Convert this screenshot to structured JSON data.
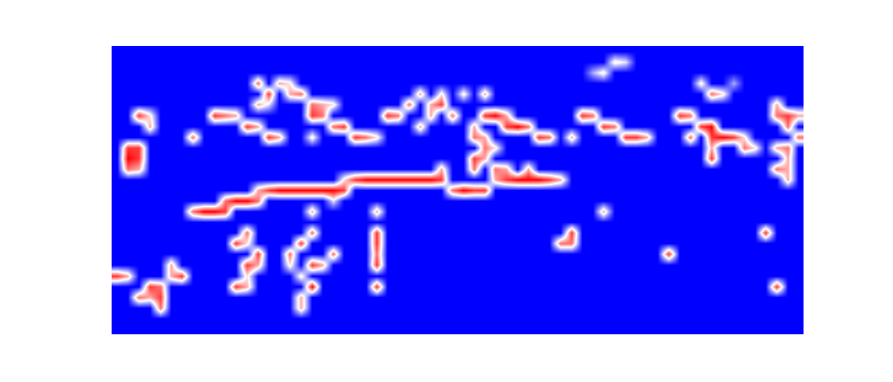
{
  "chart_data": {
    "type": "heatmap",
    "tick_labels": false,
    "zlim": [
      0,
      9
    ],
    "z": [
      [
        0,
        0,
        0,
        0,
        0,
        0,
        0,
        0,
        0,
        0,
        0,
        0,
        0,
        0,
        0,
        0,
        0,
        0,
        0,
        0,
        0,
        0,
        0,
        0,
        0,
        0,
        0,
        0,
        0,
        0,
        0,
        0,
        0,
        0,
        0,
        0,
        0,
        0,
        0,
        0,
        0,
        0,
        0,
        0,
        0,
        0,
        0,
        0,
        0,
        0,
        0,
        0,
        0,
        0,
        0,
        0,
        0,
        0,
        0,
        0,
        0,
        0,
        0,
        0
      ],
      [
        0,
        0,
        0,
        0,
        0,
        0,
        0,
        0,
        0,
        0,
        0,
        0,
        0,
        0,
        0,
        0,
        0,
        0,
        0,
        0,
        0,
        0,
        0,
        0,
        0,
        0,
        0,
        0,
        0,
        0,
        0,
        0,
        0,
        0,
        0,
        0,
        0,
        0,
        0,
        0,
        0,
        0,
        0,
        0,
        0,
        0,
        5,
        4,
        0,
        0,
        0,
        0,
        0,
        0,
        0,
        0,
        0,
        0,
        0,
        0,
        0,
        0,
        0,
        0
      ],
      [
        0,
        0,
        0,
        0,
        0,
        0,
        0,
        0,
        0,
        0,
        0,
        0,
        0,
        0,
        0,
        0,
        0,
        0,
        0,
        0,
        0,
        0,
        0,
        0,
        0,
        0,
        0,
        0,
        0,
        0,
        0,
        0,
        0,
        0,
        0,
        0,
        0,
        0,
        0,
        0,
        0,
        0,
        0,
        0,
        3,
        5,
        0,
        0,
        0,
        0,
        0,
        0,
        0,
        0,
        0,
        0,
        0,
        0,
        0,
        0,
        0,
        0,
        0,
        0
      ],
      [
        0,
        0,
        0,
        0,
        0,
        0,
        0,
        0,
        0,
        0,
        0,
        0,
        0,
        7,
        0,
        6,
        5,
        0,
        0,
        0,
        0,
        0,
        0,
        0,
        0,
        0,
        0,
        0,
        0,
        0,
        0,
        0,
        0,
        0,
        0,
        0,
        0,
        0,
        0,
        0,
        0,
        0,
        0,
        0,
        0,
        0,
        0,
        0,
        0,
        0,
        0,
        0,
        0,
        0,
        5,
        0,
        0,
        3,
        0,
        0,
        0,
        0,
        0,
        0
      ],
      [
        0,
        0,
        0,
        0,
        0,
        0,
        0,
        0,
        0,
        0,
        0,
        0,
        0,
        0,
        8,
        0,
        6,
        7,
        0,
        0,
        0,
        0,
        0,
        0,
        0,
        0,
        0,
        0,
        6,
        0,
        5,
        0,
        5,
        0,
        6,
        0,
        0,
        0,
        0,
        0,
        0,
        0,
        0,
        0,
        0,
        0,
        0,
        0,
        0,
        0,
        0,
        0,
        0,
        0,
        0,
        7,
        5,
        0,
        0,
        0,
        0,
        0,
        0,
        0
      ],
      [
        0,
        0,
        0,
        0,
        0,
        0,
        0,
        0,
        0,
        0,
        0,
        0,
        0,
        6,
        4,
        0,
        0,
        0,
        7,
        6,
        5,
        0,
        0,
        0,
        0,
        0,
        0,
        7,
        0,
        6,
        8,
        0,
        0,
        0,
        0,
        0,
        0,
        0,
        0,
        0,
        0,
        0,
        0,
        0,
        0,
        0,
        0,
        0,
        0,
        0,
        0,
        0,
        0,
        0,
        0,
        0,
        0,
        0,
        0,
        0,
        0,
        6,
        0,
        0
      ],
      [
        0,
        0,
        8,
        5,
        0,
        0,
        0,
        0,
        0,
        8,
        7,
        6,
        0,
        0,
        0,
        0,
        0,
        0,
        8,
        7,
        0,
        0,
        0,
        0,
        0,
        8,
        7,
        0,
        0,
        6,
        0,
        7,
        0,
        0,
        8,
        9,
        6,
        0,
        0,
        0,
        0,
        0,
        0,
        8,
        7,
        0,
        0,
        0,
        0,
        0,
        0,
        0,
        8,
        7,
        0,
        0,
        0,
        0,
        0,
        0,
        0,
        7,
        8,
        6
      ],
      [
        0,
        0,
        0,
        6,
        0,
        0,
        0,
        0,
        0,
        0,
        0,
        0,
        8,
        6,
        0,
        0,
        0,
        0,
        0,
        0,
        7,
        8,
        0,
        0,
        0,
        0,
        0,
        0,
        6,
        0,
        0,
        0,
        0,
        6,
        0,
        0,
        8,
        9,
        7,
        0,
        0,
        0,
        0,
        0,
        0,
        8,
        7,
        0,
        0,
        0,
        0,
        0,
        0,
        0,
        8,
        9,
        0,
        0,
        0,
        0,
        0,
        0,
        7,
        0
      ],
      [
        0,
        0,
        0,
        0,
        0,
        0,
        0,
        7,
        0,
        0,
        0,
        0,
        0,
        0,
        8,
        6,
        0,
        0,
        5,
        0,
        0,
        0,
        8,
        7,
        5,
        0,
        0,
        0,
        0,
        0,
        0,
        0,
        0,
        7,
        6,
        0,
        0,
        0,
        0,
        8,
        7,
        0,
        6,
        0,
        0,
        0,
        0,
        8,
        8,
        6,
        0,
        0,
        0,
        7,
        0,
        8,
        9,
        8,
        5,
        0,
        0,
        0,
        0,
        7
      ],
      [
        0,
        8,
        8,
        0,
        0,
        0,
        0,
        0,
        0,
        0,
        0,
        0,
        0,
        0,
        0,
        0,
        0,
        0,
        0,
        0,
        0,
        0,
        0,
        0,
        0,
        0,
        0,
        0,
        0,
        0,
        0,
        0,
        0,
        0,
        7,
        5,
        0,
        0,
        0,
        0,
        0,
        0,
        0,
        0,
        0,
        0,
        0,
        0,
        0,
        0,
        0,
        0,
        0,
        0,
        0,
        6,
        0,
        0,
        7,
        5,
        0,
        6,
        7,
        0
      ],
      [
        0,
        9,
        8,
        0,
        0,
        0,
        0,
        0,
        0,
        0,
        0,
        0,
        0,
        0,
        0,
        0,
        0,
        0,
        0,
        0,
        0,
        0,
        0,
        0,
        0,
        0,
        0,
        0,
        0,
        0,
        0,
        0,
        0,
        8,
        6,
        0,
        0,
        0,
        0,
        0,
        0,
        0,
        0,
        0,
        0,
        0,
        0,
        0,
        0,
        0,
        0,
        0,
        0,
        0,
        0,
        8,
        0,
        0,
        0,
        0,
        0,
        0,
        6,
        0
      ],
      [
        0,
        7,
        6,
        0,
        0,
        0,
        0,
        0,
        0,
        0,
        0,
        0,
        0,
        0,
        0,
        0,
        0,
        0,
        0,
        0,
        0,
        0,
        0,
        0,
        0,
        0,
        0,
        0,
        0,
        0,
        6,
        0,
        0,
        7,
        0,
        7,
        6,
        0,
        6,
        0,
        0,
        0,
        0,
        0,
        0,
        0,
        0,
        0,
        0,
        0,
        0,
        0,
        0,
        0,
        0,
        0,
        0,
        0,
        0,
        0,
        0,
        7,
        6,
        0
      ],
      [
        0,
        0,
        0,
        0,
        0,
        0,
        0,
        0,
        0,
        0,
        0,
        0,
        0,
        0,
        0,
        0,
        0,
        0,
        0,
        0,
        0,
        5,
        8,
        9,
        9,
        9,
        9,
        9,
        9,
        9,
        8,
        0,
        0,
        0,
        0,
        6,
        8,
        9,
        9,
        9,
        8,
        6,
        0,
        0,
        0,
        0,
        0,
        0,
        0,
        0,
        0,
        0,
        0,
        0,
        0,
        0,
        0,
        0,
        0,
        0,
        0,
        0,
        6,
        0
      ],
      [
        0,
        0,
        0,
        0,
        0,
        0,
        0,
        0,
        0,
        0,
        0,
        0,
        0,
        6,
        8,
        9,
        9,
        9,
        9,
        9,
        9,
        8,
        0,
        0,
        0,
        0,
        0,
        0,
        0,
        0,
        0,
        7,
        9,
        8,
        8,
        0,
        0,
        0,
        0,
        0,
        0,
        0,
        0,
        0,
        0,
        0,
        0,
        0,
        0,
        0,
        0,
        0,
        0,
        0,
        0,
        0,
        0,
        0,
        0,
        0,
        0,
        0,
        0,
        0
      ],
      [
        0,
        0,
        0,
        0,
        0,
        0,
        0,
        0,
        0,
        0,
        7,
        9,
        9,
        7,
        0,
        0,
        0,
        0,
        0,
        0,
        4,
        0,
        0,
        0,
        0,
        0,
        0,
        0,
        0,
        0,
        0,
        0,
        0,
        0,
        0,
        0,
        0,
        0,
        0,
        0,
        0,
        0,
        0,
        0,
        0,
        0,
        0,
        0,
        0,
        0,
        0,
        0,
        0,
        0,
        0,
        0,
        0,
        0,
        0,
        0,
        0,
        0,
        0,
        0
      ],
      [
        0,
        0,
        0,
        0,
        0,
        0,
        0,
        7,
        9,
        9,
        8,
        0,
        0,
        0,
        0,
        0,
        0,
        0,
        6,
        0,
        0,
        0,
        0,
        0,
        6,
        0,
        0,
        0,
        0,
        0,
        0,
        0,
        0,
        0,
        0,
        0,
        0,
        0,
        0,
        0,
        0,
        0,
        0,
        0,
        0,
        6,
        0,
        0,
        0,
        0,
        0,
        0,
        0,
        0,
        0,
        0,
        0,
        0,
        0,
        0,
        0,
        0,
        0,
        0
      ],
      [
        0,
        0,
        0,
        0,
        0,
        0,
        0,
        0,
        0,
        0,
        0,
        0,
        0,
        0,
        0,
        0,
        0,
        0,
        0,
        0,
        0,
        0,
        0,
        0,
        0,
        0,
        0,
        0,
        0,
        0,
        0,
        0,
        0,
        0,
        0,
        0,
        0,
        0,
        0,
        0,
        0,
        0,
        0,
        0,
        0,
        0,
        0,
        0,
        0,
        0,
        0,
        0,
        0,
        0,
        0,
        0,
        0,
        0,
        0,
        0,
        0,
        0,
        0,
        0
      ],
      [
        0,
        0,
        0,
        0,
        0,
        0,
        0,
        0,
        0,
        0,
        0,
        0,
        7,
        0,
        0,
        0,
        0,
        0,
        7,
        0,
        0,
        0,
        0,
        0,
        8,
        0,
        0,
        0,
        0,
        0,
        0,
        0,
        0,
        0,
        0,
        0,
        0,
        0,
        0,
        0,
        0,
        0,
        8,
        0,
        0,
        0,
        0,
        0,
        0,
        0,
        0,
        0,
        0,
        0,
        0,
        0,
        0,
        0,
        0,
        0,
        8,
        0,
        0,
        0
      ],
      [
        0,
        0,
        0,
        0,
        0,
        0,
        0,
        0,
        0,
        0,
        0,
        8,
        5,
        0,
        0,
        0,
        0,
        8,
        0,
        0,
        0,
        0,
        0,
        0,
        8,
        0,
        0,
        0,
        0,
        0,
        0,
        0,
        0,
        0,
        0,
        0,
        0,
        0,
        0,
        0,
        0,
        7,
        7,
        0,
        0,
        0,
        0,
        0,
        0,
        0,
        0,
        0,
        0,
        0,
        0,
        0,
        0,
        0,
        0,
        0,
        0,
        0,
        0,
        0
      ],
      [
        0,
        0,
        0,
        0,
        0,
        0,
        0,
        0,
        0,
        0,
        0,
        0,
        0,
        8,
        0,
        0,
        7,
        0,
        0,
        0,
        7,
        0,
        0,
        0,
        7,
        0,
        0,
        0,
        0,
        0,
        0,
        0,
        0,
        0,
        0,
        0,
        0,
        0,
        0,
        0,
        0,
        0,
        0,
        0,
        0,
        0,
        0,
        0,
        0,
        0,
        0,
        8,
        0,
        0,
        0,
        0,
        0,
        0,
        0,
        0,
        0,
        0,
        0,
        0
      ],
      [
        0,
        0,
        0,
        0,
        0,
        6,
        0,
        0,
        0,
        0,
        0,
        0,
        8,
        6,
        0,
        0,
        5,
        0,
        8,
        6,
        0,
        0,
        0,
        0,
        8,
        0,
        0,
        0,
        0,
        0,
        0,
        0,
        0,
        0,
        0,
        0,
        0,
        0,
        0,
        0,
        0,
        0,
        0,
        0,
        0,
        0,
        0,
        0,
        0,
        0,
        0,
        0,
        0,
        0,
        0,
        0,
        0,
        0,
        0,
        0,
        0,
        0,
        0,
        0
      ],
      [
        8,
        6,
        0,
        0,
        0,
        6,
        8,
        0,
        0,
        0,
        0,
        0,
        5,
        0,
        0,
        0,
        0,
        5,
        0,
        0,
        0,
        0,
        0,
        0,
        0,
        0,
        0,
        0,
        0,
        0,
        0,
        0,
        0,
        0,
        0,
        0,
        0,
        0,
        0,
        0,
        0,
        0,
        0,
        0,
        0,
        0,
        0,
        0,
        0,
        0,
        0,
        0,
        0,
        0,
        0,
        0,
        0,
        0,
        0,
        0,
        0,
        0,
        0,
        0
      ],
      [
        0,
        0,
        0,
        8,
        7,
        0,
        0,
        0,
        0,
        0,
        0,
        8,
        6,
        0,
        0,
        0,
        0,
        0,
        9,
        0,
        0,
        0,
        0,
        0,
        8,
        0,
        0,
        0,
        0,
        0,
        0,
        0,
        0,
        0,
        0,
        0,
        0,
        0,
        0,
        0,
        0,
        0,
        0,
        0,
        0,
        0,
        0,
        0,
        0,
        0,
        0,
        0,
        0,
        0,
        0,
        0,
        0,
        0,
        0,
        0,
        0,
        8,
        0,
        0
      ],
      [
        0,
        0,
        7,
        6,
        8,
        0,
        0,
        0,
        0,
        0,
        0,
        0,
        0,
        0,
        0,
        0,
        0,
        6,
        0,
        0,
        0,
        0,
        0,
        0,
        0,
        0,
        0,
        0,
        0,
        0,
        0,
        0,
        0,
        0,
        0,
        0,
        0,
        0,
        0,
        0,
        0,
        0,
        0,
        0,
        0,
        0,
        0,
        0,
        0,
        0,
        0,
        0,
        0,
        0,
        0,
        0,
        0,
        0,
        0,
        0,
        0,
        0,
        0,
        0
      ],
      [
        0,
        0,
        0,
        0,
        7,
        0,
        0,
        0,
        0,
        0,
        0,
        0,
        0,
        0,
        0,
        0,
        0,
        6,
        0,
        0,
        0,
        0,
        0,
        0,
        0,
        0,
        0,
        0,
        0,
        0,
        0,
        0,
        0,
        0,
        0,
        0,
        0,
        0,
        0,
        0,
        0,
        0,
        0,
        0,
        0,
        0,
        0,
        0,
        0,
        0,
        0,
        0,
        0,
        0,
        0,
        0,
        0,
        0,
        0,
        0,
        0,
        0,
        0,
        0
      ],
      [
        0,
        0,
        0,
        0,
        0,
        0,
        0,
        0,
        0,
        0,
        0,
        0,
        0,
        0,
        0,
        0,
        0,
        0,
        0,
        0,
        0,
        0,
        0,
        0,
        0,
        0,
        0,
        0,
        0,
        0,
        0,
        0,
        0,
        0,
        0,
        0,
        0,
        0,
        0,
        0,
        0,
        0,
        0,
        0,
        0,
        0,
        0,
        0,
        0,
        0,
        0,
        0,
        0,
        0,
        0,
        0,
        0,
        0,
        0,
        0,
        0,
        0,
        0,
        0
      ],
      [
        0,
        0,
        0,
        0,
        0,
        0,
        0,
        0,
        0,
        0,
        0,
        0,
        0,
        0,
        0,
        0,
        0,
        0,
        0,
        0,
        0,
        0,
        0,
        0,
        0,
        0,
        0,
        0,
        0,
        0,
        0,
        0,
        0,
        0,
        0,
        0,
        0,
        0,
        0,
        0,
        0,
        0,
        0,
        0,
        0,
        0,
        0,
        0,
        0,
        0,
        0,
        0,
        0,
        0,
        0,
        0,
        0,
        0,
        0,
        0,
        0,
        0,
        0,
        0
      ]
    ]
  }
}
